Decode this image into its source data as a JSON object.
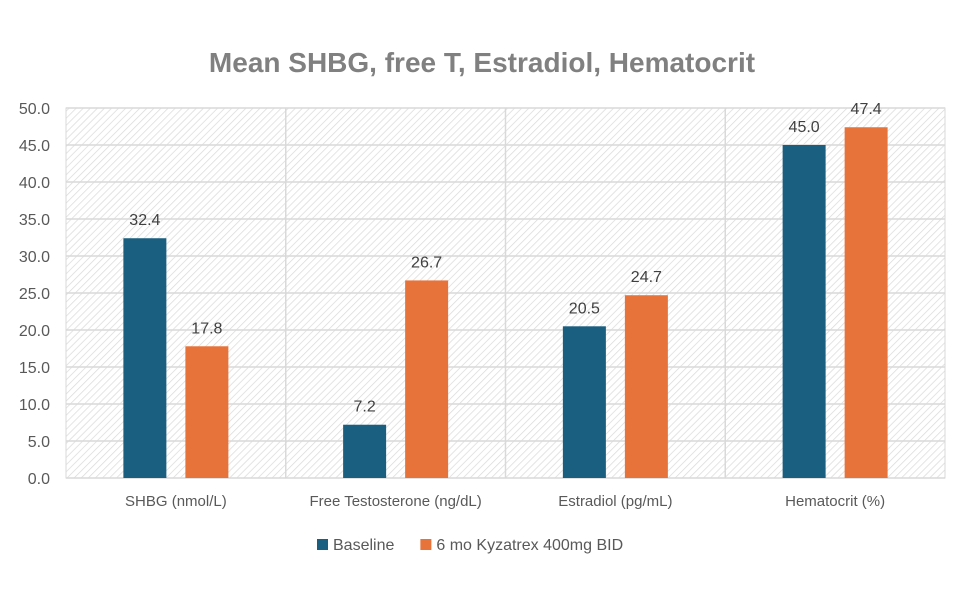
{
  "chart_data": {
    "type": "bar",
    "title": "Mean SHBG, free T, Estradiol, Hematocrit",
    "xlabel": "",
    "ylabel": "",
    "ylim": [
      0,
      50
    ],
    "yticks": [
      "0.0",
      "5.0",
      "10.0",
      "15.0",
      "20.0",
      "25.0",
      "30.0",
      "35.0",
      "40.0",
      "45.0",
      "50.0"
    ],
    "grid": true,
    "legend_position": "bottom",
    "categories": [
      "SHBG (nmol/L)",
      "Free Testosterone (ng/dL)",
      "Estradiol (pg/mL)",
      "Hematocrit (%)"
    ],
    "series": [
      {
        "name": "Baseline",
        "color": "#1a5f80",
        "values": [
          32.4,
          7.2,
          20.5,
          45.0
        ],
        "labels": [
          "32.4",
          "7.2",
          "20.5",
          "45.0"
        ]
      },
      {
        "name": "6 mo Kyzatrex 400mg BID",
        "color": "#e8733a",
        "values": [
          17.8,
          26.7,
          24.7,
          47.4
        ],
        "labels": [
          "17.8",
          "26.7",
          "24.7",
          "47.4"
        ]
      }
    ]
  }
}
